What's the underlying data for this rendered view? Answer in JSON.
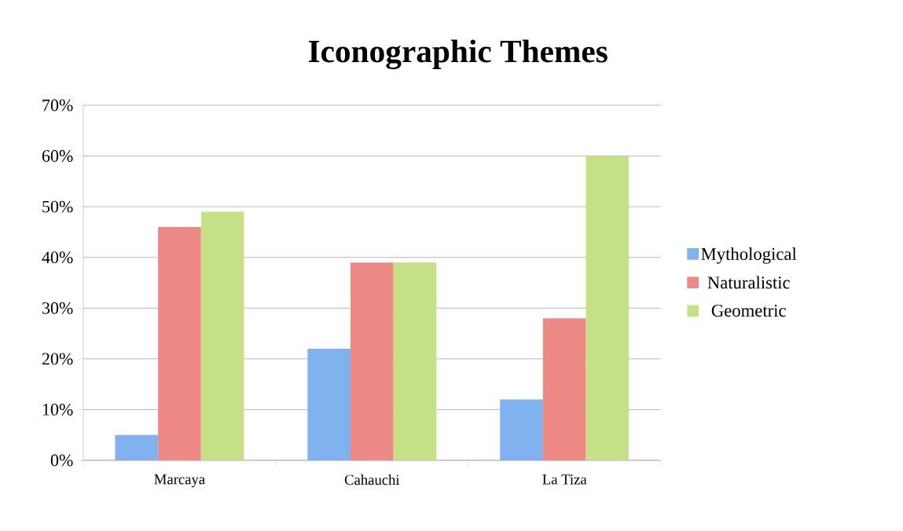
{
  "chart_data": {
    "type": "bar",
    "title": "Iconographic Themes",
    "categories": [
      "Marcaya",
      "Cahauchi",
      "La Tiza"
    ],
    "series": [
      {
        "name": "Mythological",
        "color": "#7fb2ee",
        "values": [
          5,
          22,
          12
        ]
      },
      {
        "name": "Naturalistic",
        "color": "#ee8a86",
        "values": [
          46,
          39,
          28
        ]
      },
      {
        "name": "Geometric",
        "color": "#c6e088",
        "values": [
          49,
          39,
          60
        ]
      }
    ],
    "ylim": [
      0,
      70
    ],
    "yticks": [
      {
        "value": 0,
        "label": "0%"
      },
      {
        "value": 10,
        "label": "10%"
      },
      {
        "value": 20,
        "label": "20%"
      },
      {
        "value": 30,
        "label": "30%"
      },
      {
        "value": 40,
        "label": "40%"
      },
      {
        "value": 50,
        "label": "50%"
      },
      {
        "value": 60,
        "label": "60%"
      },
      {
        "value": 70,
        "label": "70%"
      }
    ],
    "grid": "y",
    "legend": "right"
  }
}
